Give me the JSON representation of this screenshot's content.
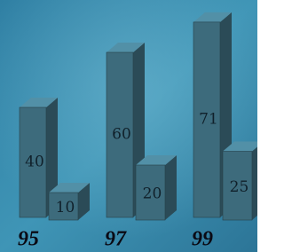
{
  "chart_data": {
    "type": "bar",
    "categories": [
      "95",
      "97",
      "99"
    ],
    "series": [
      {
        "color": "#3d6b7c",
        "values": [
          40,
          60,
          71
        ]
      },
      {
        "color": "#3d6b7c",
        "values": [
          10,
          20,
          25
        ]
      }
    ]
  }
}
